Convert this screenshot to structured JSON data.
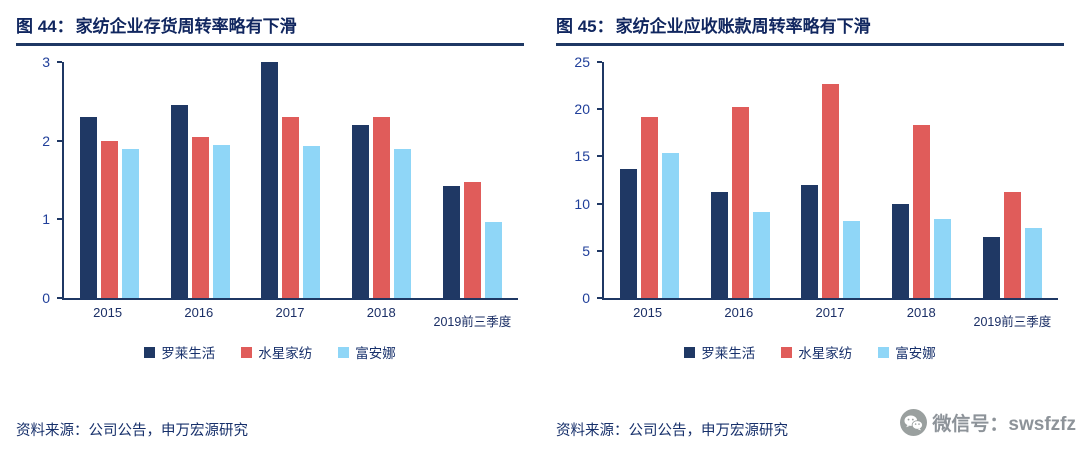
{
  "watermark": {
    "icon": "wechat-icon",
    "text": "微信号：swsfzfz"
  },
  "chart_data": [
    {
      "type": "bar",
      "fig_label": "图 44：",
      "title": "家纺企业存货周转率略有下滑",
      "categories": [
        "2015",
        "2016",
        "2017",
        "2018",
        "2019前三季度"
      ],
      "series": [
        {
          "name": "罗莱生活",
          "values": [
            2.3,
            2.45,
            3.0,
            2.2,
            1.43
          ]
        },
        {
          "name": "水星家纺",
          "values": [
            2.0,
            2.05,
            2.3,
            2.3,
            1.48
          ]
        },
        {
          "name": "富安娜",
          "values": [
            1.9,
            1.95,
            1.93,
            1.9,
            0.97
          ]
        }
      ],
      "series_colors": [
        "#1f3864",
        "#e05c5a",
        "#8fd6f7"
      ],
      "ylim": [
        0,
        3
      ],
      "yticks": [
        0,
        1,
        2,
        3
      ],
      "grid": false,
      "legend_position": "bottom",
      "source": "资料来源：公司公告，申万宏源研究"
    },
    {
      "type": "bar",
      "fig_label": "图 45：",
      "title": "家纺企业应收账款周转率略有下滑",
      "categories": [
        "2015",
        "2016",
        "2017",
        "2018",
        "2019前三季度"
      ],
      "series": [
        {
          "name": "罗莱生活",
          "values": [
            13.7,
            11.2,
            12.0,
            10.0,
            6.5
          ]
        },
        {
          "name": "水星家纺",
          "values": [
            19.2,
            20.2,
            22.7,
            18.3,
            11.2
          ]
        },
        {
          "name": "富安娜",
          "values": [
            15.4,
            9.1,
            8.2,
            8.4,
            7.4
          ]
        }
      ],
      "series_colors": [
        "#1f3864",
        "#e05c5a",
        "#8fd6f7"
      ],
      "ylim": [
        0,
        25
      ],
      "yticks": [
        0,
        5,
        10,
        15,
        20,
        25
      ],
      "grid": false,
      "legend_position": "bottom",
      "source": "资料来源：公司公告，申万宏源研究"
    }
  ]
}
